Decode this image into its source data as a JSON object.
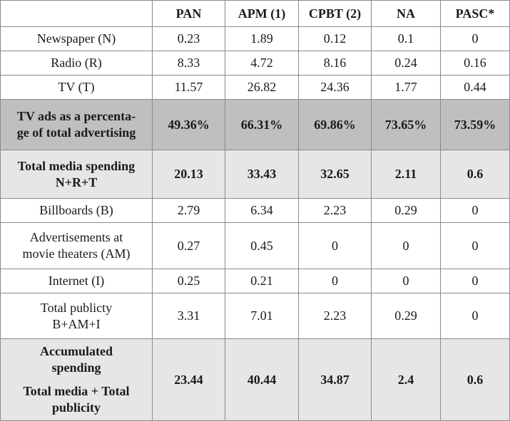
{
  "table": {
    "header": [
      "PAN",
      "APM (1)",
      "CPBT (2)",
      "NA",
      "PASC*"
    ],
    "rows": [
      {
        "label": [
          "Newspaper (N)"
        ],
        "cells": [
          "0.23",
          "1.89",
          "0.12",
          "0.1",
          "0"
        ]
      },
      {
        "label": [
          "Radio (R)"
        ],
        "cells": [
          "8.33",
          "4.72",
          "8.16",
          "0.24",
          "0.16"
        ]
      },
      {
        "label": [
          "TV (T)"
        ],
        "cells": [
          "11.57",
          "26.82",
          "24.36",
          "1.77",
          "0.44"
        ]
      },
      {
        "label": [
          "TV ads as a percenta-",
          "ge of total advertising"
        ],
        "cells": [
          "49.36%",
          "66.31%",
          "69.86%",
          "73.65%",
          "73.59%"
        ],
        "shade": "#bfbfbf",
        "bold": true
      },
      {
        "label": [
          "Total media spending",
          "N+R+T"
        ],
        "cells": [
          "20.13",
          "33.43",
          "32.65",
          "2.11",
          "0.6"
        ],
        "shade": "#e6e6e6",
        "bold": true
      },
      {
        "label": [
          "Billboards (B)"
        ],
        "cells": [
          "2.79",
          "6.34",
          "2.23",
          "0.29",
          "0"
        ]
      },
      {
        "label": [
          "Advertisements at",
          "movie theaters (AM)"
        ],
        "cells": [
          "0.27",
          "0.45",
          "0",
          "0",
          "0"
        ]
      },
      {
        "label": [
          "Internet (I)"
        ],
        "cells": [
          "0.25",
          "0.21",
          "0",
          "0",
          "0"
        ]
      },
      {
        "label": [
          "Total publicty",
          "B+AM+I"
        ],
        "cells": [
          "3.31",
          "7.01",
          "2.23",
          "0.29",
          "0"
        ]
      },
      {
        "label": [
          "Accumulated",
          "spending",
          "Total media + Total",
          "publicity"
        ],
        "cells": [
          "23.44",
          "40.44",
          "34.87",
          "2.4",
          "0.6"
        ],
        "shade": "#e6e6e6",
        "bold": true
      }
    ]
  }
}
